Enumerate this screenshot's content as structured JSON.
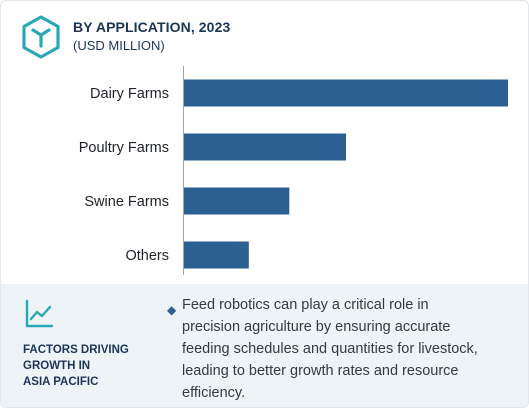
{
  "header": {
    "title": "BY APPLICATION, 2023",
    "subtitle": "(USD MILLION)",
    "accent_color": "#2b5f91",
    "logo_icon": "cube-hex-logo-icon"
  },
  "chart_data": {
    "type": "bar",
    "orientation": "horizontal",
    "categories": [
      "Dairy Farms",
      "Poultry Farms",
      "Swine Farms",
      "Others"
    ],
    "values": [
      100,
      50,
      32.5,
      20
    ],
    "title": "BY APPLICATION, 2023",
    "subtitle": "(USD MILLION)",
    "xlabel": "",
    "ylabel": "",
    "xlim": [
      0,
      100
    ],
    "bar_color": "#2b5f91",
    "grid": false,
    "value_labels_shown": false
  },
  "factors": {
    "icon": "trend-line-icon",
    "title_lines": [
      "FACTORS DRIVING",
      "GROWTH IN",
      "ASIA PACIFIC"
    ],
    "bullet": "◆",
    "text_lines": [
      "Feed robotics can play a critical role in",
      "precision agriculture by ensuring accurate",
      "feeding schedules and quantities for livestock,",
      "leading to better growth rates and resource",
      "efficiency."
    ],
    "background_color": "#eef3f8"
  }
}
